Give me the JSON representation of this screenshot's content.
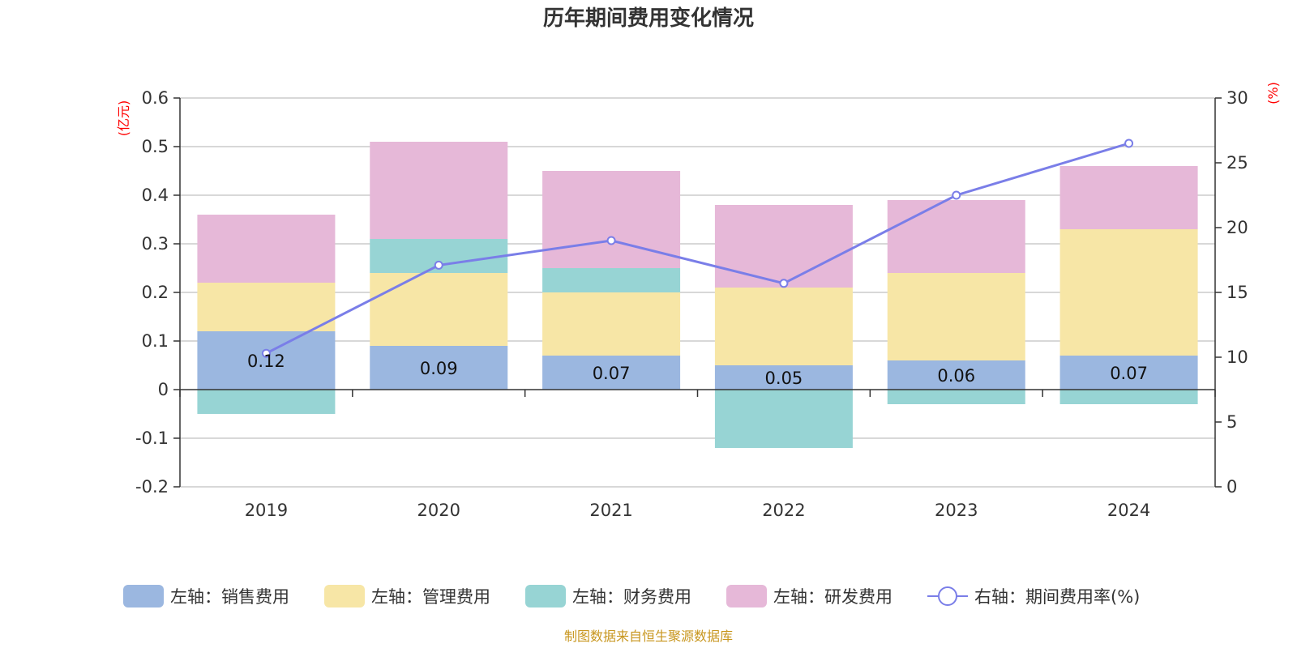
{
  "chart_data": {
    "type": "bar",
    "stacked": true,
    "title": "历年期间费用变化情况",
    "categories": [
      "2019",
      "2020",
      "2021",
      "2022",
      "2023",
      "2024"
    ],
    "left_axis": {
      "unit_label": "(亿元)",
      "ylim": [
        -0.2,
        0.6
      ],
      "ticks": [
        "0.6",
        "0.5",
        "0.4",
        "0.3",
        "0.2",
        "0.1",
        "0",
        "-0.1",
        "-0.2"
      ],
      "tick_values": [
        0.6,
        0.5,
        0.4,
        0.3,
        0.2,
        0.1,
        0,
        -0.1,
        -0.2
      ]
    },
    "right_axis": {
      "unit_label": "(%)",
      "ylim": [
        0,
        30
      ],
      "ticks": [
        "30",
        "25",
        "20",
        "15",
        "10",
        "5",
        "0"
      ],
      "tick_values": [
        30,
        25,
        20,
        15,
        10,
        5,
        0
      ]
    },
    "series": [
      {
        "name": "销售费用",
        "legend": "左轴：销售费用",
        "axis": "left",
        "type": "bar",
        "color": "#9bb7e0",
        "values": [
          0.12,
          0.09,
          0.07,
          0.05,
          0.06,
          0.07
        ],
        "labels": [
          "0.12",
          "0.09",
          "0.07",
          "0.05",
          "0.06",
          "0.07"
        ]
      },
      {
        "name": "管理费用",
        "legend": "左轴：管理费用",
        "axis": "left",
        "type": "bar",
        "color": "#f7e6a6",
        "values": [
          0.1,
          0.15,
          0.13,
          0.16,
          0.18,
          0.26
        ]
      },
      {
        "name": "财务费用",
        "legend": "左轴：财务费用",
        "axis": "left",
        "type": "bar",
        "color": "#97d4d4",
        "values": [
          -0.05,
          0.07,
          0.05,
          -0.12,
          -0.03,
          -0.03
        ]
      },
      {
        "name": "研发费用",
        "legend": "左轴：研发费用",
        "axis": "left",
        "type": "bar",
        "color": "#e6b8d8",
        "values": [
          0.14,
          0.2,
          0.2,
          0.17,
          0.15,
          0.13
        ]
      },
      {
        "name": "期间费用率(%)",
        "legend": "右轴：期间费用率(%)",
        "axis": "right",
        "type": "line",
        "color": "#7a7ee8",
        "values": [
          10.3,
          17.1,
          19.0,
          15.7,
          22.5,
          26.5
        ]
      }
    ],
    "source": "制图数据来自恒生聚源数据库"
  }
}
